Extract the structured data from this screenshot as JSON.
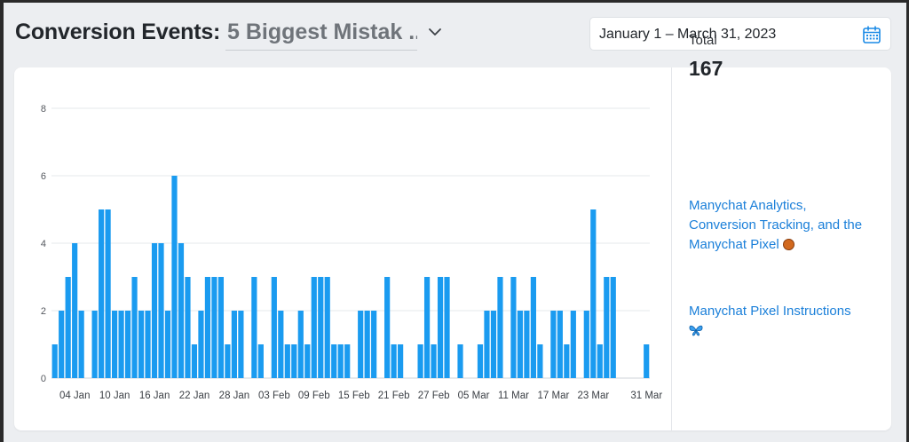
{
  "header": {
    "title": "Conversion Events:",
    "selected_event": "5 Biggest Mistak ..",
    "date_range": "January 1 – March 31, 2023"
  },
  "summary": {
    "total_label": "Total",
    "total_value": "167"
  },
  "links": [
    {
      "text": "Manychat Analytics, Conversion Tracking, and the Manychat Pixel"
    },
    {
      "text": "Manychat Pixel Instructions"
    }
  ],
  "colors": {
    "bar": "#1a9bf0",
    "bar_top": "#0a8ce8",
    "link": "#1a7fd9"
  },
  "icons": [
    "chevron-down-icon",
    "calendar-icon",
    "basketball-icon",
    "butterfly-icon"
  ],
  "chart_data": {
    "type": "bar",
    "ylim": [
      0,
      8
    ],
    "yticks": [
      0,
      2,
      4,
      6,
      8
    ],
    "xtick_labels": [
      "04 Jan",
      "10 Jan",
      "16 Jan",
      "22 Jan",
      "28 Jan",
      "03 Feb",
      "09 Feb",
      "15 Feb",
      "21 Feb",
      "27 Feb",
      "05 Mar",
      "11 Mar",
      "17 Mar",
      "23 Mar",
      "31 Mar"
    ],
    "xtick_index": [
      3,
      9,
      15,
      21,
      27,
      33,
      39,
      45,
      51,
      57,
      63,
      69,
      75,
      81,
      89
    ],
    "values": [
      1,
      2,
      3,
      4,
      2,
      0,
      2,
      5,
      5,
      2,
      2,
      2,
      3,
      2,
      2,
      4,
      4,
      2,
      6,
      4,
      3,
      1,
      2,
      3,
      3,
      3,
      1,
      2,
      2,
      0,
      3,
      1,
      0,
      3,
      2,
      1,
      1,
      2,
      1,
      3,
      3,
      3,
      1,
      1,
      1,
      0,
      2,
      2,
      2,
      0,
      3,
      1,
      1,
      0,
      0,
      1,
      3,
      1,
      3,
      3,
      0,
      1,
      0,
      0,
      1,
      2,
      2,
      3,
      0,
      3,
      2,
      2,
      3,
      1,
      0,
      2,
      2,
      1,
      2,
      0,
      2,
      5,
      1,
      3,
      3,
      0,
      0,
      0,
      0,
      1
    ]
  }
}
